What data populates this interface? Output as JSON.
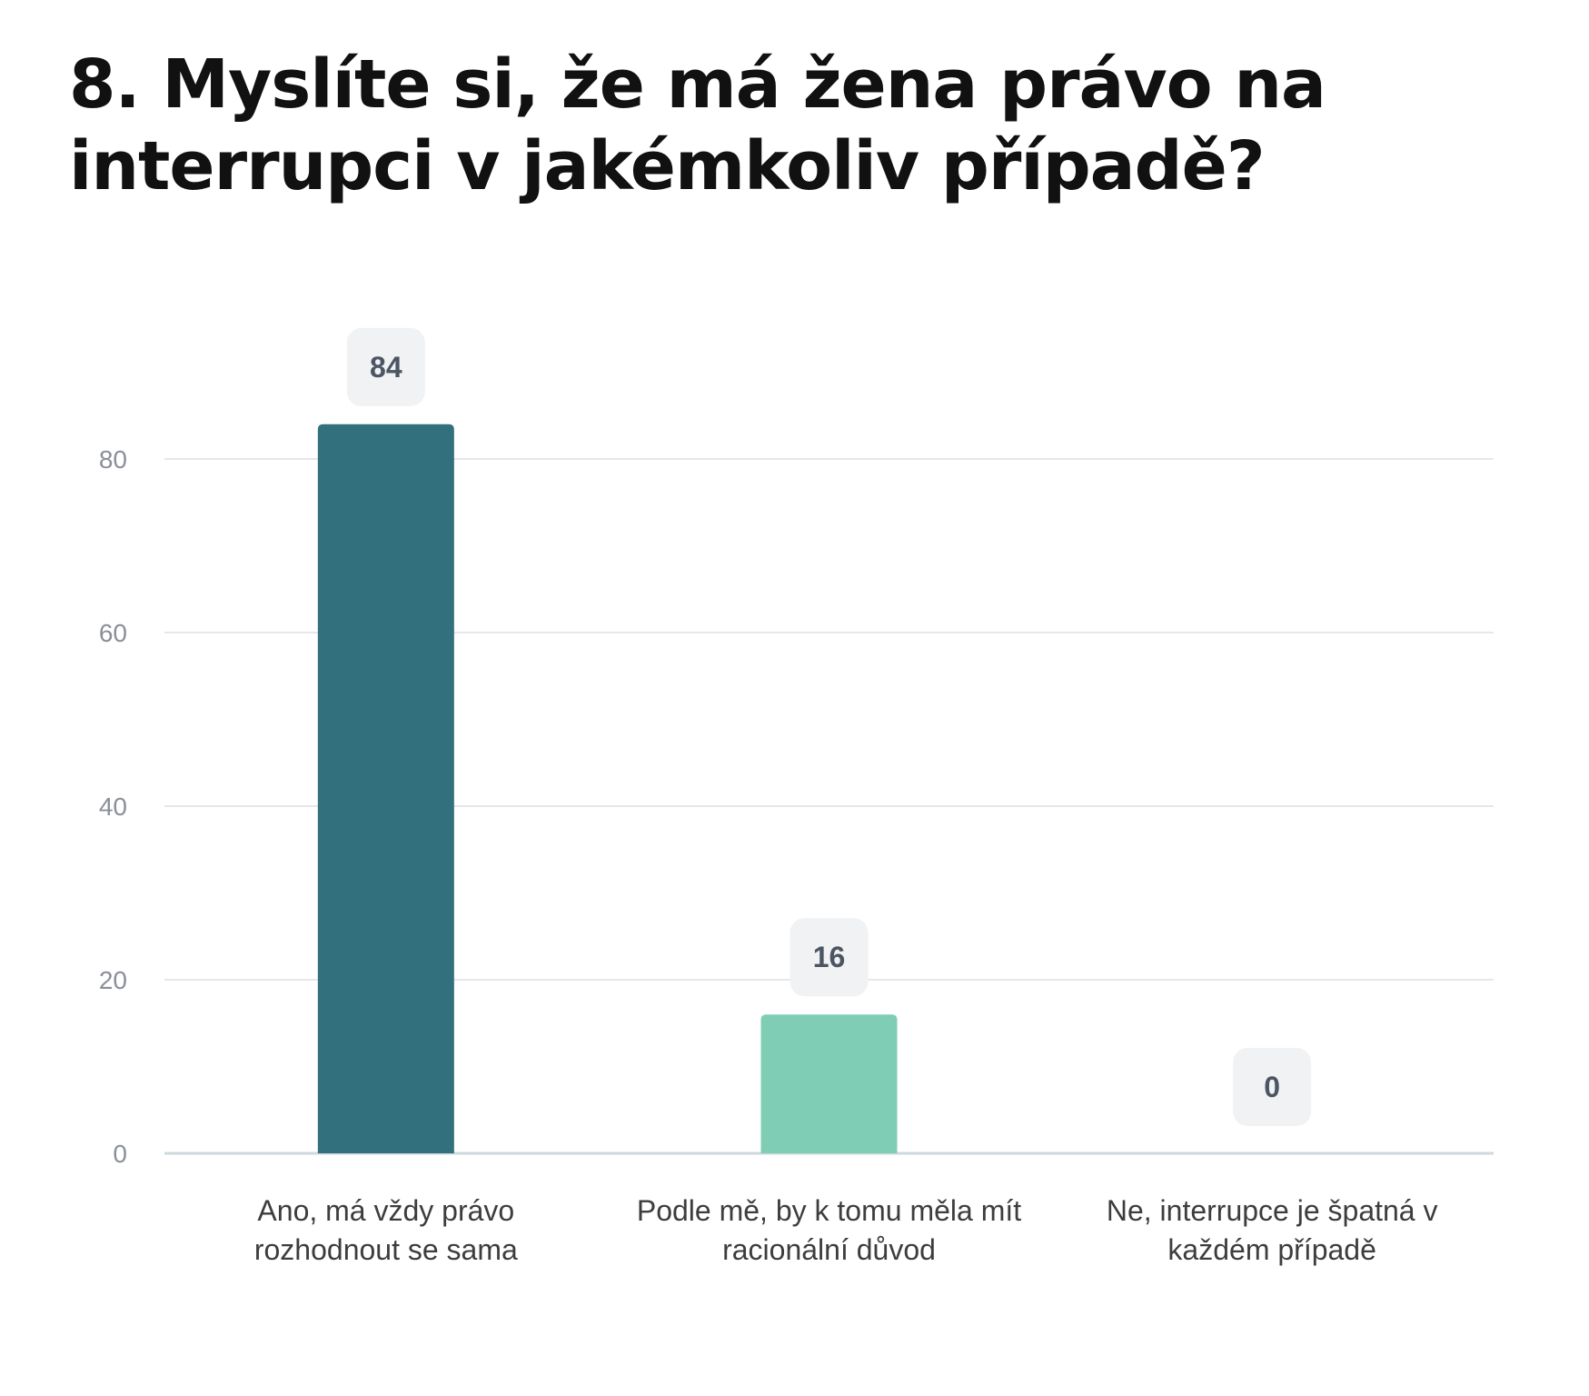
{
  "title": "8. Myslíte si, že má žena právo na interrupci v jakémkoliv případě?",
  "chart_data": {
    "type": "bar",
    "categories": [
      [
        "Ano, má vždy právo",
        "rozhodnout se sama"
      ],
      [
        "Podle mě, by k tomu měla mít",
        "racionální důvod"
      ],
      [
        "Ne, interrupce je špatná v",
        "každém případě"
      ]
    ],
    "values": [
      84,
      16,
      0
    ],
    "value_labels": [
      "84",
      "16",
      "0"
    ],
    "colors": [
      "#32707d",
      "#7fcdb5",
      "#a0c9c9"
    ],
    "ylim": [
      0,
      80
    ],
    "yticks": [
      0,
      20,
      40,
      60,
      80
    ],
    "ytick_labels": [
      "0",
      "20",
      "40",
      "60",
      "80"
    ],
    "grid": true,
    "xlabel": "",
    "ylabel": ""
  }
}
